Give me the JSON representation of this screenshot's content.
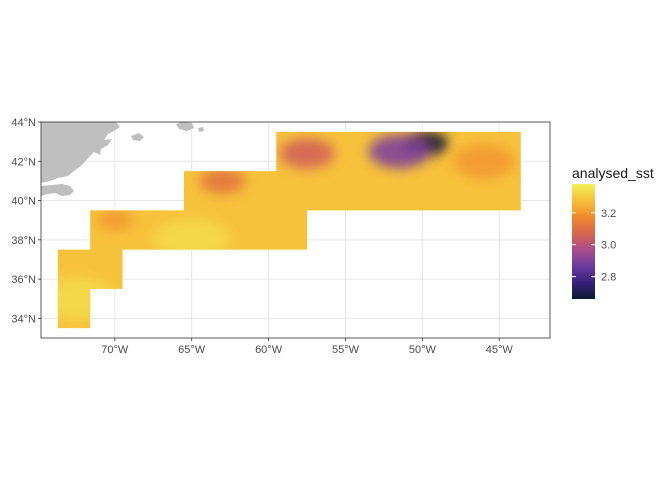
{
  "map": {
    "type": "raster-map",
    "projection": "equirectangular",
    "lon_range": [
      -74.8,
      -41.7
    ],
    "lat_range": [
      33.0,
      44.0
    ],
    "x_ticks": [
      {
        "value": -70,
        "label": "70°W"
      },
      {
        "value": -65,
        "label": "65°W"
      },
      {
        "value": -60,
        "label": "60°W"
      },
      {
        "value": -55,
        "label": "55°W"
      },
      {
        "value": -50,
        "label": "50°W"
      },
      {
        "value": -45,
        "label": "45°W"
      }
    ],
    "y_ticks": [
      {
        "value": 34,
        "label": "34°N"
      },
      {
        "value": 36,
        "label": "36°N"
      },
      {
        "value": 38,
        "label": "38°N"
      },
      {
        "value": 40,
        "label": "40°N"
      },
      {
        "value": 42,
        "label": "42°N"
      },
      {
        "value": 44,
        "label": "44°N"
      }
    ],
    "grid": true,
    "land_color": "#bfbfbf",
    "grid_color": "#e6e6e6",
    "data_regions": [
      {
        "lon_min": -73.7,
        "lon_max": -71.6,
        "lat_min": 33.5,
        "lat_max": 37.5
      },
      {
        "lon_min": -71.6,
        "lon_max": -69.5,
        "lat_min": 35.5,
        "lat_max": 37.5
      },
      {
        "lon_min": -71.6,
        "lon_max": -57.5,
        "lat_min": 37.5,
        "lat_max": 39.5
      },
      {
        "lon_min": -65.5,
        "lon_max": -43.6,
        "lat_min": 39.5,
        "lat_max": 41.5
      },
      {
        "lon_min": -59.5,
        "lon_max": -43.6,
        "lat_min": 41.5,
        "lat_max": 43.5
      }
    ],
    "field_features": [
      {
        "lon": -49.8,
        "lat": 42.9,
        "value": 2.66,
        "radius_deg": 1.5
      },
      {
        "lon": -51.5,
        "lat": 42.5,
        "value": 2.9,
        "radius_deg": 2.0
      },
      {
        "lon": -57.5,
        "lat": 42.4,
        "value": 3.06,
        "radius_deg": 1.8
      },
      {
        "lon": -63.0,
        "lat": 41.0,
        "value": 3.12,
        "radius_deg": 1.5
      },
      {
        "lon": -70.0,
        "lat": 39.0,
        "value": 3.2,
        "radius_deg": 1.2
      },
      {
        "lon": -65.0,
        "lat": 38.0,
        "value": 3.33,
        "radius_deg": 2.5
      },
      {
        "lon": -72.5,
        "lat": 35.0,
        "value": 3.33,
        "radius_deg": 2.5
      },
      {
        "lon": -46.0,
        "lat": 42.0,
        "value": 3.2,
        "radius_deg": 2.0
      }
    ],
    "background_value": 3.28
  },
  "legend": {
    "title": "analysed_sst",
    "min": 2.66,
    "max": 3.38,
    "ticks": [
      {
        "value": 2.8,
        "label": "2.8"
      },
      {
        "value": 3.0,
        "label": "3.0"
      },
      {
        "value": 3.2,
        "label": "3.2"
      }
    ],
    "colors": [
      "#0a1a33",
      "#36217a",
      "#6b3aa0",
      "#a84d8c",
      "#d8654f",
      "#f08a2e",
      "#f7c13a",
      "#f2f25a"
    ]
  }
}
